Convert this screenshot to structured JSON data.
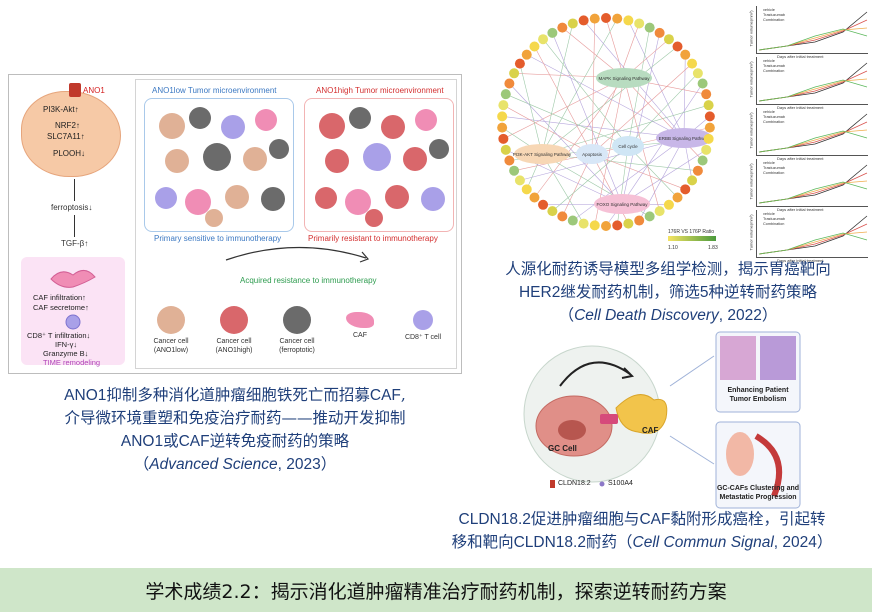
{
  "panel_ano1": {
    "mechanism": {
      "ano1": "ANO1",
      "pi3k": "PI3K-Akt↑",
      "nrf2": "NRF2↑",
      "slc": "SLC7A11↑",
      "plooh": "PLOOH↓",
      "ferroptosis": "ferroptosis↓",
      "tgf": "TGF-β↑",
      "caf_inf": "CAF infiltration↑",
      "caf_sec": "CAF secretome↑",
      "cd8": "CD8⁺ T infiltration↓",
      "ifn": "IFN-γ↓",
      "gzm": "Granzyme B↓",
      "time": "TIME remodeling"
    },
    "tme_left_title": "ANO1low Tumor microenvironment",
    "tme_right_title": "ANO1high Tumor microenvironment",
    "left_result": "Primary sensitive to immunotherapy",
    "right_result": "Primarily resistant to immunotherapy",
    "acquired": "Acquired resistance to immunotherapy",
    "legend": [
      {
        "l1": "Cancer cell",
        "l2": "(ANO1low)",
        "color": "#e0b196"
      },
      {
        "l1": "Cancer cell",
        "l2": "(ANO1high)",
        "color": "#d9676b"
      },
      {
        "l1": "Cancer cell",
        "l2": "(ferroptotic)",
        "color": "#6b6b6b"
      },
      {
        "l1": "CAF",
        "l2": "",
        "color": "#f08db5"
      },
      {
        "l1": "CD8⁺ T cell",
        "l2": "",
        "color": "#a9a0e8"
      }
    ]
  },
  "caption1": {
    "line1_a": "ANO1",
    "line1_b": "抑制多种消化道肿瘤细胞铁死亡而招募",
    "line1_c": "CAF",
    "line1_d": ",",
    "line2": "介导微环境重塑和免疫治疗耐药——推动开发抑制",
    "line3_a": "ANO1",
    "line3_b": "或",
    "line3_c": "CAF",
    "line3_d": "逆转免疫耐药的策略",
    "journal": "Advanced Science",
    "year": ", 2023"
  },
  "panel_her2": {
    "pathways": [
      "MAPK Signaling Pathway",
      "PI3K-AKT Signaling Pathway",
      "ERBB Signaling Pathway",
      "Apoptosis",
      "Cell cycle",
      "FOXO Signaling Pathway"
    ],
    "scale_label": "176R VS 176P Ratio",
    "scale_min": "1.10",
    "scale_max": "1.83",
    "mini_xlabel": "Days after initial treatment",
    "mini_ylabel": "Tumor volume(mm³)",
    "mini_legend": [
      "vehicle",
      "Trastuzumab",
      "Combination"
    ]
  },
  "caption2": {
    "line1": "人源化耐药诱导模型多组学检测，揭示胃癌靶向",
    "line2_a": "HER2",
    "line2_b": "继发耐药机制，筛选",
    "line2_c": "5",
    "line2_d": "种逆转耐药策略",
    "journal": "Cell Death Discovery",
    "year": ", 2022"
  },
  "panel_cldn": {
    "gc_cell": "GC Cell",
    "caf": "CAF",
    "legend_a": "CLDN18.2",
    "legend_b": "S100A4",
    "box1_l1": "Enhancing Patient",
    "box1_l2": "Tumor Embolism",
    "box2_l1": "GC-CAFs Clustering and",
    "box2_l2": "Metastatic Progression"
  },
  "caption3": {
    "line1_a": "CLDN18.2",
    "line1_b": "促进肿瘤细胞与",
    "line1_c": "CAF",
    "line1_d": "黏附形成癌栓，引起转",
    "line2_a": "移和靶向",
    "line2_b": "CLDN18.2",
    "line2_c": "耐药（",
    "journal": "Cell Commun Signal",
    "year": ", 2024）"
  },
  "banner": "学术成绩2.2：揭示消化道肿瘤精准治疗耐药机制，探索逆转耐药方案"
}
